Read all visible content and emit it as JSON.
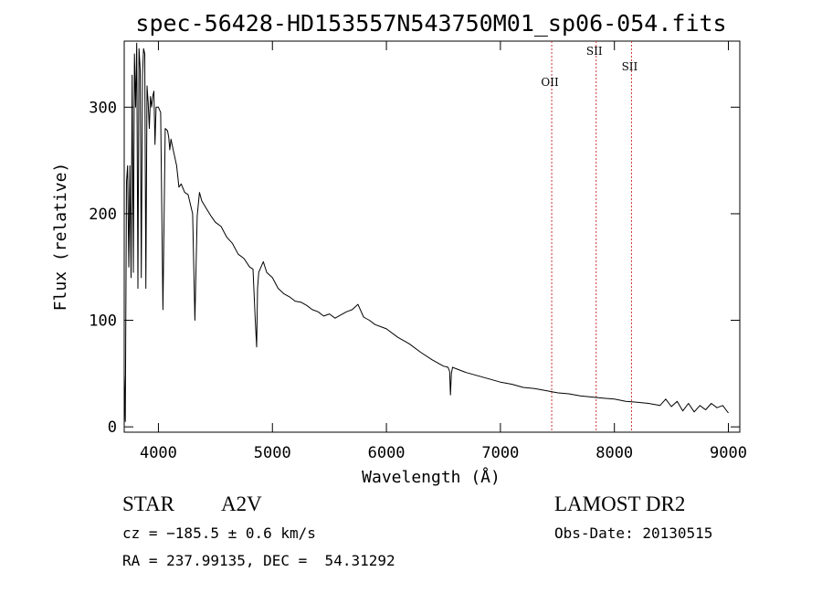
{
  "chart_data": {
    "type": "line",
    "title": "spec-56428-HD153557N543750M01_sp06-054.fits",
    "xlabel": "Wavelength (Å)",
    "ylabel": "Flux (relative)",
    "xlim": [
      3700,
      9100
    ],
    "ylim": [
      -5,
      362
    ],
    "xticks": [
      4000,
      5000,
      6000,
      7000,
      8000,
      9000
    ],
    "yticks": [
      0,
      100,
      200,
      300
    ],
    "grid": false,
    "series": [
      {
        "x": [
          3700,
          3710,
          3720,
          3730,
          3740,
          3750,
          3760,
          3770,
          3780,
          3790,
          3800,
          3810,
          3820,
          3830,
          3840,
          3850,
          3860,
          3870,
          3880,
          3890,
          3900,
          3910,
          3920,
          3930,
          3940,
          3950,
          3960,
          3970,
          3980,
          4000,
          4020,
          4040,
          4060,
          4080,
          4090,
          4100,
          4110,
          4120,
          4140,
          4160,
          4180,
          4200,
          4230,
          4260,
          4300,
          4320,
          4340,
          4360,
          4380,
          4420,
          4460,
          4500,
          4550,
          4600,
          4650,
          4700,
          4750,
          4800,
          4830,
          4850,
          4862,
          4870,
          4880,
          4900,
          4920,
          4950,
          5000,
          5050,
          5100,
          5150,
          5200,
          5250,
          5300,
          5350,
          5400,
          5450,
          5500,
          5550,
          5600,
          5650,
          5700,
          5750,
          5800,
          5850,
          5900,
          5950,
          6000,
          6100,
          6200,
          6300,
          6400,
          6500,
          6540,
          6555,
          6562,
          6570,
          6580,
          6600,
          6700,
          6800,
          6900,
          7000,
          7100,
          7200,
          7300,
          7400,
          7500,
          7600,
          7700,
          7800,
          7900,
          8000,
          8100,
          8200,
          8300,
          8400,
          8450,
          8500,
          8550,
          8600,
          8650,
          8700,
          8750,
          8800,
          8850,
          8900,
          8950,
          9000
        ],
        "y": [
          50,
          5,
          230,
          245,
          150,
          245,
          140,
          330,
          145,
          350,
          300,
          360,
          130,
          355,
          335,
          140,
          330,
          355,
          350,
          130,
          320,
          305,
          280,
          310,
          300,
          310,
          315,
          265,
          300,
          300,
          295,
          110,
          280,
          278,
          272,
          260,
          270,
          265,
          255,
          245,
          225,
          228,
          220,
          218,
          200,
          100,
          198,
          220,
          212,
          205,
          198,
          192,
          188,
          178,
          172,
          162,
          158,
          150,
          148,
          100,
          75,
          130,
          145,
          150,
          155,
          145,
          140,
          130,
          125,
          122,
          118,
          117,
          114,
          110,
          108,
          104,
          106,
          102,
          105,
          108,
          110,
          115,
          103,
          100,
          96,
          94,
          92,
          84,
          78,
          70,
          63,
          57,
          56,
          52,
          30,
          50,
          56,
          55,
          51,
          48,
          45,
          42,
          40,
          37,
          36,
          34,
          32,
          31,
          29,
          28,
          27,
          26,
          24,
          23,
          22,
          20,
          26,
          19,
          24,
          15,
          22,
          14,
          20,
          16,
          22,
          18,
          20,
          13
        ]
      }
    ],
    "annotations": [
      {
        "label": "OII",
        "x": 7450
      },
      {
        "label": "SII",
        "x": 7840
      },
      {
        "label": "SII",
        "x": 8150
      }
    ],
    "axis_color": "#000000",
    "line_color": "#000000",
    "marker_line_color": "#cc3333"
  },
  "info": {
    "object": "STAR",
    "subclass": "A2V",
    "survey": "LAMOST DR2",
    "cz": "cz = −185.5 ± 0.6 km/s",
    "obs_date": "Obs-Date: 20130515",
    "radec": "RA = 237.99135, DEC =  54.31292"
  }
}
